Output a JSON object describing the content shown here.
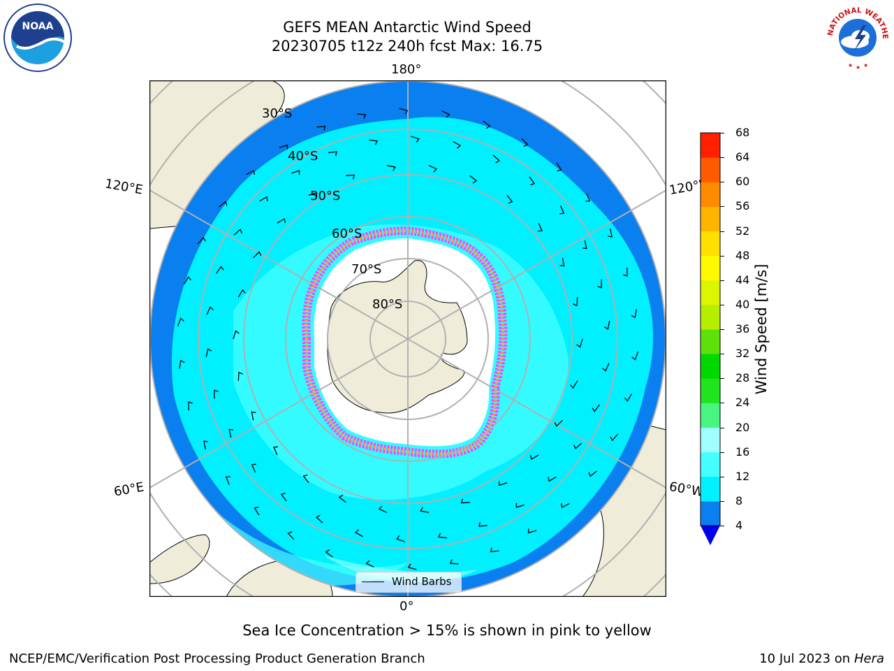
{
  "title": "GEFS MEAN Antarctic Wind Speed",
  "subtitle": "20230705 t12z 240h fcst   Max: 16.75",
  "caption": "Sea Ice Concentration > 15% is shown in pink to yellow",
  "credit": "NCEP/EMC/Verification Post Processing Product Generation Branch",
  "date": "10 Jul 2023",
  "date_on": "on",
  "machine": "Hera",
  "legend_label": "Wind Barbs",
  "logos": {
    "left": "NOAA",
    "right": "NATIONAL WEATHER SERVICE"
  },
  "lon_labels": {
    "top": "180°",
    "bottom": "0°",
    "upper_left": "120°E",
    "upper_right": "120°W",
    "lower_left": "60°E",
    "lower_right": "60°W"
  },
  "lat_labels": [
    "30°S",
    "40°S",
    "50°S",
    "60°S",
    "70°S",
    "80°S"
  ],
  "colorbar": {
    "label": "Wind Speed [m/s]",
    "ticks": [
      "4",
      "8",
      "12",
      "16",
      "20",
      "24",
      "28",
      "32",
      "36",
      "40",
      "44",
      "48",
      "52",
      "56",
      "60",
      "64",
      "68"
    ],
    "colors": [
      "#0a7fef",
      "#00f0ff",
      "#45ffff",
      "#a0ffff",
      "#48f580",
      "#1fe51f",
      "#00d800",
      "#5ee00a",
      "#b7ee00",
      "#dcf500",
      "#fffa00",
      "#ffe000",
      "#ffb500",
      "#ff8c00",
      "#ff5a00",
      "#ff2000"
    ],
    "under_color": "#0000ee"
  }
}
